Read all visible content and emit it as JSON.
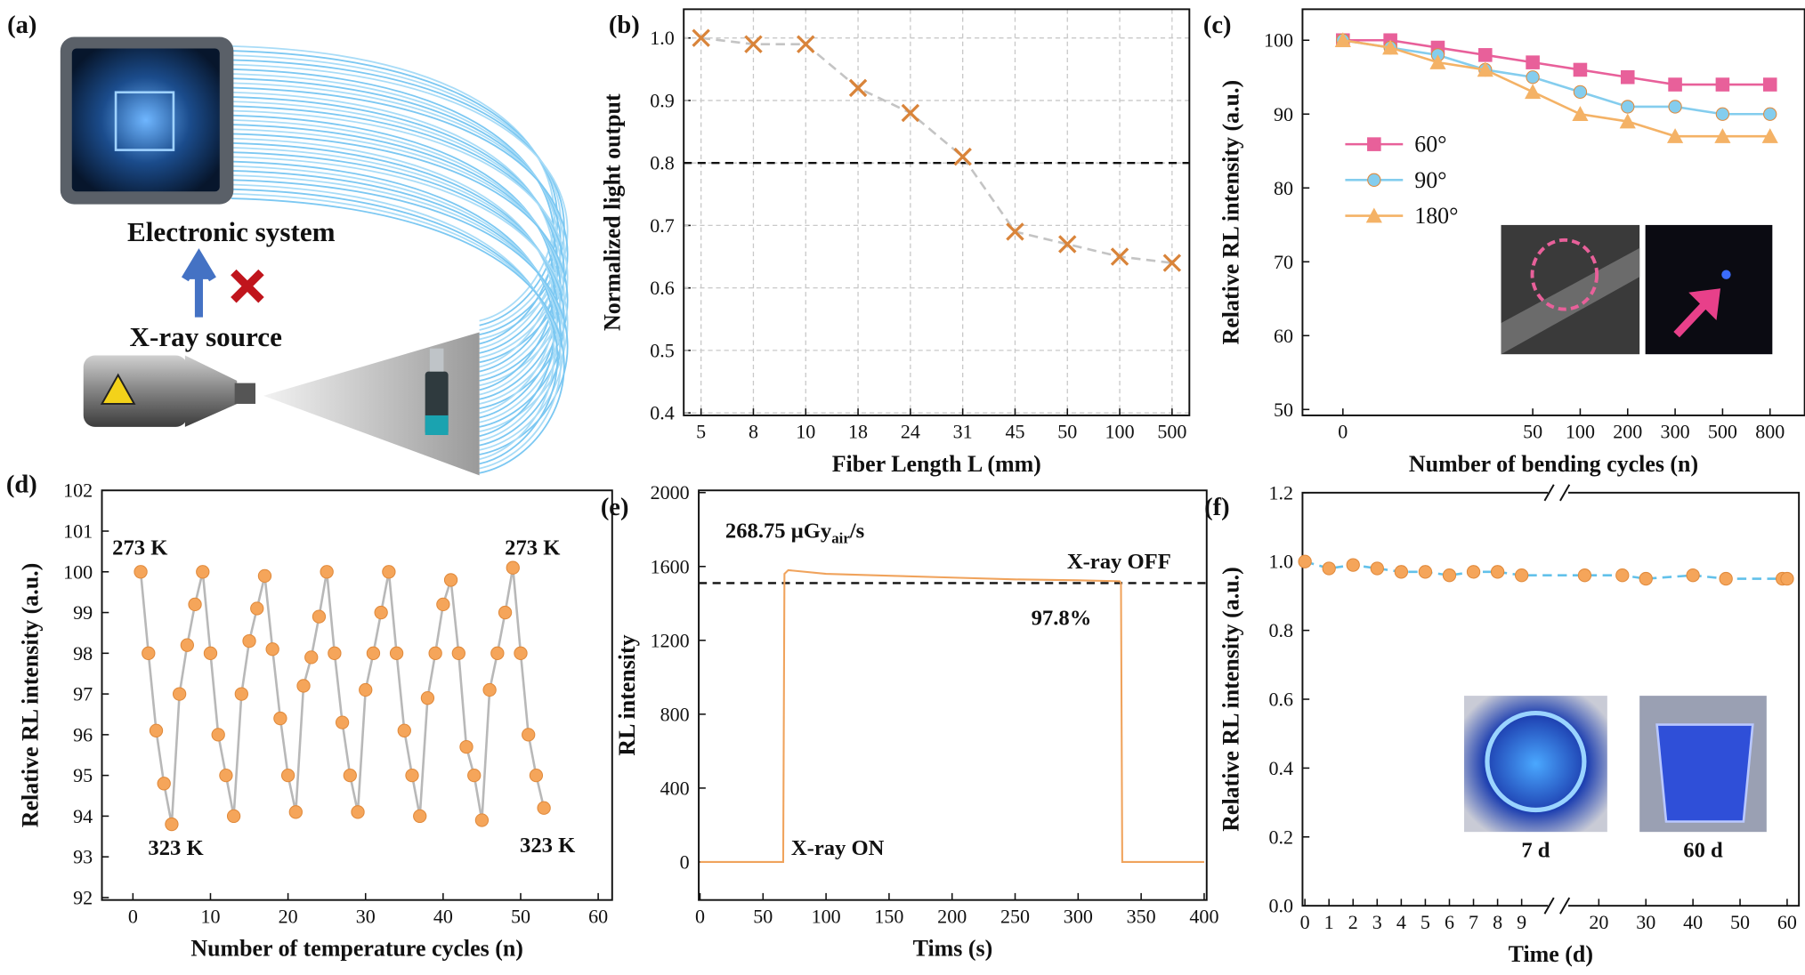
{
  "panel_a": {
    "label": "(a)",
    "system": "Electronic system",
    "source": "X-ray source"
  },
  "chart_data": [
    {
      "type": "line",
      "label": "(b)",
      "xlabel": "Fiber Length L (mm)",
      "ylabel": "Normalized light output",
      "categories": [
        "5",
        "8",
        "10",
        "18",
        "24",
        "31",
        "45",
        "50",
        "100",
        "500"
      ],
      "series": [
        {
          "color": "#d9843a",
          "line_color": "#c4c4c4",
          "marker": "x",
          "dashed": true,
          "values": [
            1.0,
            0.99,
            0.99,
            0.92,
            0.88,
            0.81,
            0.69,
            0.67,
            0.65,
            0.64
          ]
        }
      ],
      "ylim": [
        0.396,
        1.046
      ],
      "yticks": [
        0.4,
        0.5,
        0.6,
        0.7,
        0.8,
        0.9,
        {
          "value": 1,
          "label": "1.0"
        }
      ],
      "ref_line": 0.8,
      "grid": true
    },
    {
      "type": "line",
      "label": "(c)",
      "xlabel": "Number of bending cycles (n)",
      "ylabel": "Relative RL intensity (a.u.)",
      "categories": [
        "0",
        null,
        null,
        null,
        "50",
        "100",
        "200",
        "300",
        "500",
        "800"
      ],
      "series": [
        {
          "name": "60°",
          "color": "#e8609a",
          "marker": "square",
          "values": [
            100,
            100,
            99,
            98,
            97,
            96,
            95,
            94,
            94,
            94
          ]
        },
        {
          "name": "90°",
          "color": "#84cdee",
          "marker": "circle",
          "values": [
            100,
            99,
            98,
            96,
            95,
            93,
            91,
            91,
            90,
            90
          ]
        },
        {
          "name": "180°",
          "color": "#f4b266",
          "marker": "triangle",
          "values": [
            100,
            99,
            97,
            96,
            93,
            90,
            89,
            87,
            87,
            87
          ]
        }
      ],
      "ylim": [
        49.2,
        104.2
      ],
      "yticks": [
        50,
        60,
        70,
        80,
        90,
        100
      ],
      "legend": "left",
      "grid": false
    },
    {
      "type": "line",
      "label": "(d)",
      "xlabel": "Number of temperature cycles (n)",
      "ylabel": "Relative RL intensity (a.u.)",
      "x": [
        1,
        2,
        3,
        4,
        5,
        6,
        7,
        8,
        9,
        10,
        11,
        12,
        13,
        14,
        15,
        16,
        17,
        18,
        19,
        20,
        21,
        22,
        23,
        24,
        25,
        26,
        27,
        28,
        29,
        30,
        31,
        32,
        33,
        34,
        35,
        36,
        37,
        38,
        39,
        40,
        41,
        42,
        43,
        44,
        45,
        46,
        47,
        48,
        49,
        50,
        51,
        52,
        53
      ],
      "series": [
        {
          "color": "#f5a55a",
          "line_color": "#b8b8b8",
          "marker": "circle",
          "values": [
            100,
            98,
            96.1,
            94.8,
            93.8,
            97,
            98.2,
            99.2,
            100,
            98,
            96,
            95,
            94,
            97,
            98.3,
            99.1,
            99.9,
            98.1,
            96.4,
            95,
            94.1,
            97.2,
            97.9,
            98.9,
            100,
            98,
            96.3,
            95,
            94.1,
            97.1,
            98,
            99,
            100,
            98,
            96.1,
            95,
            94,
            96.9,
            98,
            99.2,
            99.8,
            98,
            95.7,
            95,
            93.9,
            97.1,
            98,
            99,
            100.1,
            98,
            96,
            95,
            94.2
          ]
        }
      ],
      "xlim": [
        -4,
        61.8
      ],
      "xticks": [
        0,
        10,
        20,
        30,
        40,
        50,
        60
      ],
      "ylim": [
        91.94,
        102
      ],
      "yticks": [
        92,
        93,
        94,
        95,
        96,
        97,
        98,
        99,
        100,
        101,
        102
      ],
      "annotations": [
        "273 K",
        "323 K",
        "273 K",
        "323 K"
      ],
      "grid": false
    },
    {
      "type": "line",
      "label": "(e)",
      "xlabel": "Tims (s)",
      "ylabel": "RL intensity",
      "x": [
        0,
        66,
        67,
        70,
        100,
        150,
        200,
        250,
        300,
        333,
        334,
        335,
        400
      ],
      "series": [
        {
          "color": "#f0a35c",
          "values": [
            0,
            0,
            1560,
            1580,
            1560,
            1550,
            1540,
            1530,
            1525,
            1520,
            1510,
            0,
            0
          ]
        }
      ],
      "xlim": [
        -1,
        402
      ],
      "xticks": [
        0,
        50,
        100,
        150,
        200,
        250,
        300,
        350,
        400
      ],
      "ylim": [
        -206,
        2012
      ],
      "yticks": [
        0,
        400,
        800,
        1200,
        1600,
        2000
      ],
      "ref_line": 1510,
      "annotations": [
        {
          "text": "268.75 μGy",
          "sub": "air",
          "suffix": "/s"
        },
        "X-ray OFF",
        "97.8%",
        "X-ray ON"
      ],
      "grid": false
    },
    {
      "type": "line",
      "label": "(f)",
      "xlabel": "Time (d)",
      "ylabel": "Relative RL intensity (a.u.)",
      "x": [
        0,
        1,
        2,
        3,
        4,
        5,
        6,
        7,
        8,
        9,
        17,
        25,
        30,
        40,
        47,
        59,
        60
      ],
      "series": [
        {
          "color": "#f5a55a",
          "line_color": "#62c1ea",
          "marker": "circle",
          "dashed": true,
          "values": [
            1.0,
            0.98,
            0.99,
            0.98,
            0.97,
            0.97,
            0.96,
            0.97,
            0.97,
            0.96,
            0.96,
            0.96,
            0.95,
            0.96,
            0.95,
            0.95,
            0.95
          ]
        }
      ],
      "xlim": [
        -0.1,
        62.5
      ],
      "x_break": [
        10,
        14
      ],
      "xticks": [
        0,
        1,
        2,
        3,
        4,
        5,
        6,
        7,
        8,
        9,
        20,
        30,
        40,
        50,
        60
      ],
      "ylim": [
        0,
        1.2
      ],
      "yticks": [
        {
          "value": 0,
          "label": "0.0"
        },
        0.2,
        0.4,
        0.6,
        0.8,
        {
          "value": 1,
          "label": "1.0"
        },
        1.2
      ],
      "annotations": [
        "7 d",
        "60 d"
      ],
      "grid": false
    }
  ]
}
